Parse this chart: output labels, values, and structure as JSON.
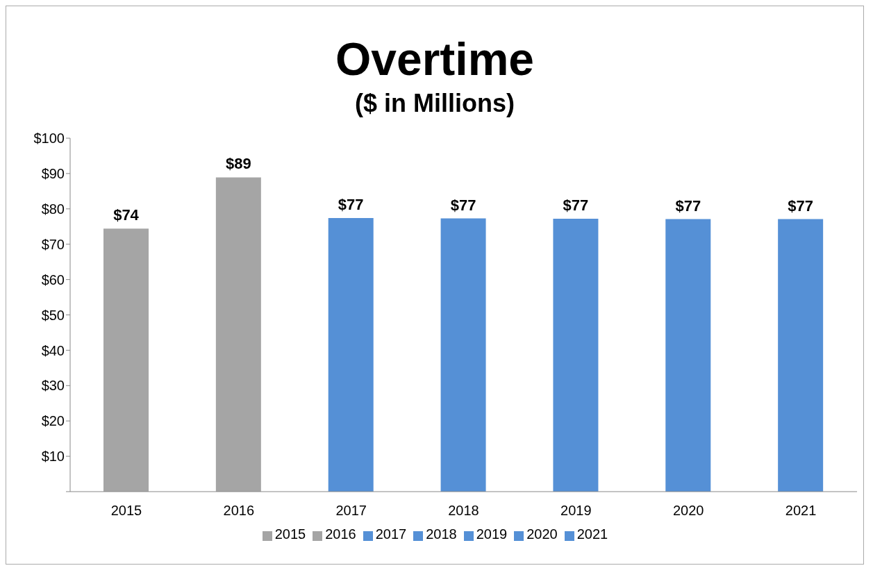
{
  "chart_data": {
    "type": "bar",
    "title": "Overtime",
    "subtitle": "($ in Millions)",
    "categories": [
      "2015",
      "2016",
      "2017",
      "2018",
      "2019",
      "2020",
      "2021"
    ],
    "stacked": true,
    "series": [
      {
        "name": "2015",
        "color": "#a5a5a5",
        "values": [
          74.4,
          null,
          null,
          null,
          null,
          null,
          null
        ],
        "value_labels": [
          "$74",
          null,
          null,
          null,
          null,
          null,
          null
        ]
      },
      {
        "name": "2016",
        "color": "#a5a5a5",
        "values": [
          null,
          88.9,
          null,
          null,
          null,
          null,
          null
        ],
        "value_labels": [
          null,
          "$89",
          null,
          null,
          null,
          null,
          null
        ]
      },
      {
        "name": "2017",
        "color": "#5590d6",
        "values": [
          null,
          null,
          77.4,
          null,
          null,
          null,
          null
        ],
        "value_labels": [
          null,
          null,
          "$77",
          null,
          null,
          null,
          null
        ]
      },
      {
        "name": "2018",
        "color": "#5590d6",
        "values": [
          null,
          null,
          null,
          77.3,
          null,
          null,
          null
        ],
        "value_labels": [
          null,
          null,
          null,
          "$77",
          null,
          null,
          null
        ]
      },
      {
        "name": "2019",
        "color": "#5590d6",
        "values": [
          null,
          null,
          null,
          null,
          77.2,
          null,
          null
        ],
        "value_labels": [
          null,
          null,
          null,
          null,
          "$77",
          null,
          null
        ]
      },
      {
        "name": "2020",
        "color": "#5590d6",
        "values": [
          null,
          null,
          null,
          null,
          null,
          77.1,
          null
        ],
        "value_labels": [
          null,
          null,
          null,
          null,
          null,
          "$77",
          null
        ]
      },
      {
        "name": "2021",
        "color": "#5590d6",
        "values": [
          null,
          null,
          null,
          null,
          null,
          null,
          77.1
        ],
        "value_labels": [
          null,
          null,
          null,
          null,
          null,
          null,
          "$77"
        ]
      }
    ],
    "ylim": [
      0,
      100
    ],
    "yticks": [
      {
        "value": 0,
        "label": null
      },
      {
        "value": 10,
        "label": "$10"
      },
      {
        "value": 20,
        "label": "$20"
      },
      {
        "value": 30,
        "label": "$30"
      },
      {
        "value": 40,
        "label": "$40"
      },
      {
        "value": 50,
        "label": "$50"
      },
      {
        "value": 60,
        "label": "$60"
      },
      {
        "value": 70,
        "label": "$70"
      },
      {
        "value": 80,
        "label": "$80"
      },
      {
        "value": 90,
        "label": "$90"
      },
      {
        "value": 100,
        "label": "$100"
      }
    ],
    "legend": "bottom"
  }
}
